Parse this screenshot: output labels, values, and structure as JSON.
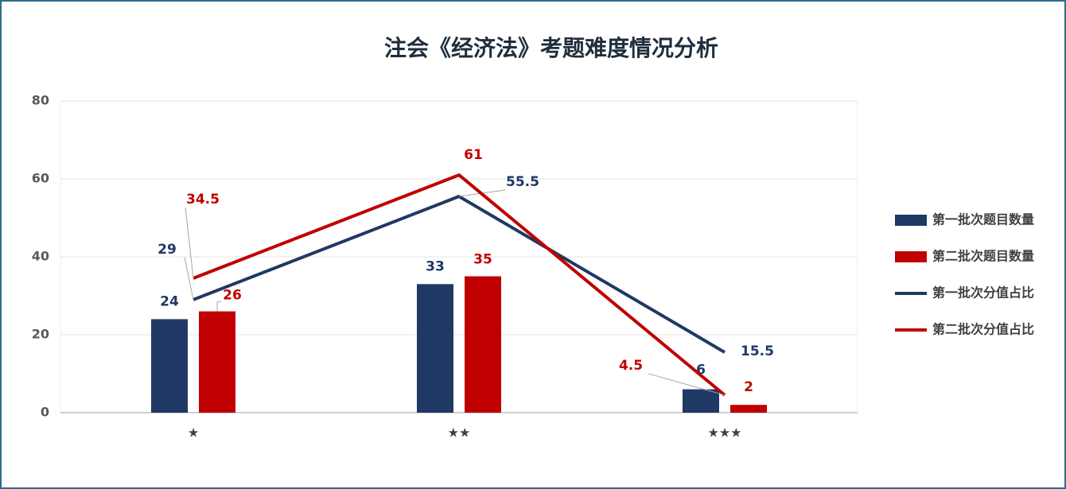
{
  "chart_data": {
    "type": "combo",
    "title": "注会《经济法》考题难度情况分析",
    "categories": [
      "★",
      "★★",
      "★★★"
    ],
    "series": [
      {
        "name": "第一批次题目数量",
        "type": "bar",
        "color": "#203864",
        "values": [
          24,
          33,
          6
        ]
      },
      {
        "name": "第二批次题目数量",
        "type": "bar",
        "color": "#c00000",
        "values": [
          26,
          35,
          2
        ]
      },
      {
        "name": "第一批次分值占比",
        "type": "line",
        "color": "#203864",
        "values": [
          29,
          55.5,
          15.5
        ]
      },
      {
        "name": "第二批次分值占比",
        "type": "line",
        "color": "#c00000",
        "values": [
          34.5,
          61,
          4.5
        ]
      }
    ],
    "ylim": [
      0,
      80
    ],
    "yticks": [
      0,
      20,
      40,
      60,
      80
    ],
    "grid": true,
    "legend": "right"
  }
}
